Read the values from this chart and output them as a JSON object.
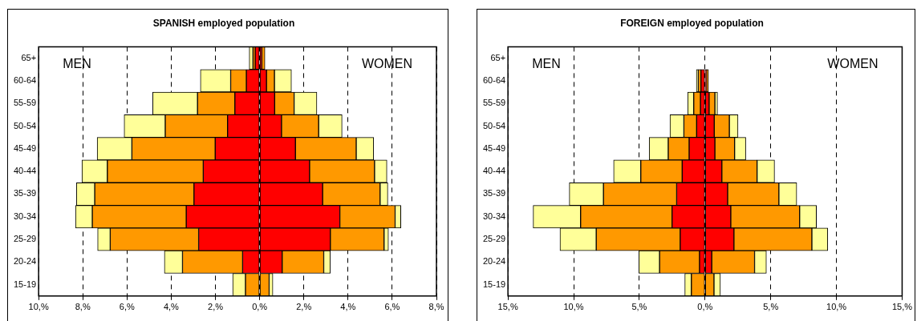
{
  "chart_data": [
    {
      "type": "bar",
      "orientation": "horizontal",
      "stacked": true,
      "title": "SPANISH employed population",
      "categories": [
        "65+",
        "60-64",
        "55-59",
        "50-54",
        "45-49",
        "40-44",
        "35-39",
        "30-34",
        "25-29",
        "20-24",
        "15-19"
      ],
      "xlim": [
        -10,
        8
      ],
      "xticks": [
        {
          "value": -10,
          "label": "10,%"
        },
        {
          "value": -8,
          "label": "8,%"
        },
        {
          "value": -6,
          "label": "6,%"
        },
        {
          "value": -4,
          "label": "4,%"
        },
        {
          "value": -2,
          "label": "2,%"
        },
        {
          "value": 0,
          "label": "0,%"
        },
        {
          "value": 2,
          "label": "2,%"
        },
        {
          "value": 4,
          "label": "4,%"
        },
        {
          "value": 6,
          "label": "6,%"
        },
        {
          "value": 8,
          "label": "8,%"
        }
      ],
      "grid": "x",
      "annotations": [
        "MEN",
        "WOMEN"
      ],
      "series": [
        {
          "color": "#ff0000",
          "values": [
            -0.2,
            -0.6,
            -1.12,
            -1.45,
            -2.01,
            -2.55,
            -2.97,
            -3.32,
            -2.76,
            -0.77,
            null
          ]
        },
        {
          "color": "#ff9900",
          "values": [
            -0.1,
            -0.71,
            -1.69,
            -2.82,
            -3.77,
            -4.34,
            -4.49,
            -4.25,
            -4.0,
            -2.72,
            -0.64
          ]
        },
        {
          "color": "#ffff99",
          "values": [
            -0.17,
            -1.37,
            -2.03,
            -1.86,
            -1.57,
            -1.15,
            -0.83,
            -0.76,
            -0.57,
            -0.82,
            -0.58
          ]
        },
        {
          "color": "#ff0000",
          "values": [
            0.1,
            0.31,
            0.68,
            0.99,
            1.62,
            2.26,
            2.85,
            3.63,
            3.2,
            1.02,
            null
          ]
        },
        {
          "color": "#ff9900",
          "values": [
            0.14,
            0.36,
            0.88,
            1.68,
            2.75,
            2.94,
            2.6,
            2.5,
            2.43,
            1.88,
            0.43
          ]
        },
        {
          "color": "#ffff99",
          "values": [
            null,
            0.77,
            1.03,
            1.06,
            0.79,
            0.56,
            0.35,
            0.26,
            0.2,
            0.3,
            0.17
          ]
        }
      ]
    },
    {
      "type": "bar",
      "orientation": "horizontal",
      "stacked": true,
      "title": "FOREIGN employed population",
      "categories": [
        "65+",
        "60-64",
        "55-59",
        "50-54",
        "45-49",
        "40-44",
        "35-39",
        "30-34",
        "25-29",
        "20-24",
        "15-19"
      ],
      "xlim": [
        -15,
        15
      ],
      "xticks": [
        {
          "value": -15,
          "label": "15,%"
        },
        {
          "value": -10,
          "label": "10,%"
        },
        {
          "value": -5,
          "label": "5,%"
        },
        {
          "value": 0,
          "label": "0,%"
        },
        {
          "value": 5,
          "label": "5,%"
        },
        {
          "value": 10,
          "label": "10,%"
        },
        {
          "value": 15,
          "label": "15,%"
        }
      ],
      "grid": "x",
      "annotations": [
        "MEN",
        "WOMEN"
      ],
      "series": [
        {
          "color": "#ff0000",
          "values": [
            null,
            -0.31,
            -0.35,
            -0.64,
            -1.21,
            -1.74,
            -2.16,
            -2.51,
            -1.89,
            -0.42,
            null
          ]
        },
        {
          "color": "#ff9900",
          "values": [
            null,
            -0.2,
            -0.51,
            -0.97,
            -1.59,
            -3.15,
            -5.57,
            -6.96,
            -6.39,
            -3.04,
            -1.04
          ]
        },
        {
          "color": "#ffff99",
          "values": [
            null,
            -0.15,
            -0.46,
            -1.06,
            -1.45,
            -2.07,
            -2.6,
            -3.61,
            -2.76,
            -1.58,
            -0.5
          ]
        },
        {
          "color": "#ff0000",
          "values": [
            null,
            0.11,
            0.31,
            0.7,
            0.75,
            1.28,
            1.72,
            1.96,
            2.2,
            0.51,
            null
          ]
        },
        {
          "color": "#ff9900",
          "values": [
            null,
            0.15,
            0.44,
            1.15,
            1.5,
            2.68,
            3.9,
            5.24,
            5.93,
            3.26,
            0.68
          ]
        },
        {
          "color": "#ffff99",
          "values": [
            null,
            null,
            0.2,
            0.66,
            0.85,
            1.33,
            1.36,
            1.28,
            1.21,
            0.9,
            0.49
          ]
        }
      ]
    }
  ]
}
